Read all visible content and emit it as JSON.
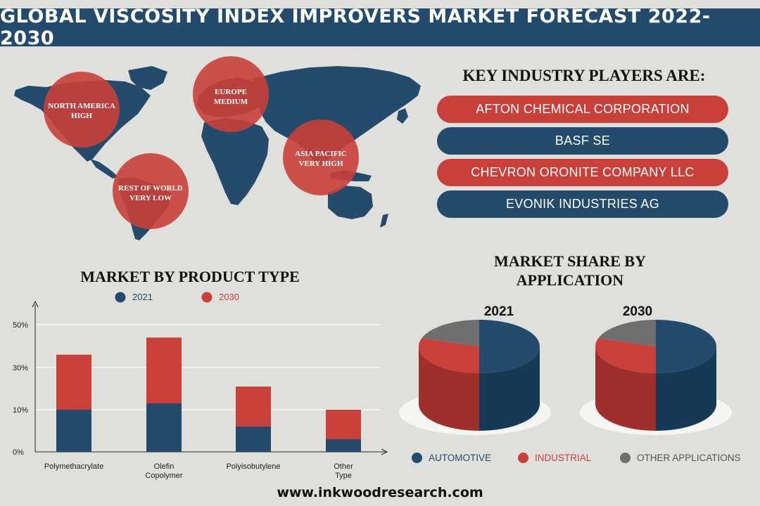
{
  "header": {
    "title": "GLOBAL VISCOSITY INDEX IMPROVERS MARKET FORECAST 2022-2030"
  },
  "regions": [
    {
      "name": "NORTH AMERICA",
      "level": "HIGH"
    },
    {
      "name": "EUROPE",
      "level": "MEDIUM"
    },
    {
      "name": "ASIA PACIFIC",
      "level": "VERY HIGH"
    },
    {
      "name": "REST OF WORLD",
      "level": "VERY LOW"
    }
  ],
  "players": {
    "title": "KEY INDUSTRY PLAYERS ARE:",
    "items": [
      "AFTON CHEMICAL CORPORATION",
      "BASF SE",
      "CHEVRON ORONITE COMPANY LLC",
      "EVONIK INDUSTRIES AG"
    ]
  },
  "product_title": "MARKET BY PRODUCT TYPE",
  "application_title": [
    "MARKET SHARE BY",
    "APPLICATION"
  ],
  "colors": {
    "navy": "#244b6b",
    "red": "#c9403a",
    "gray": "#6e6e6e",
    "bg": "#dfe0dc",
    "land": "#244b6b"
  },
  "chart_data": [
    {
      "type": "bar",
      "stacked": true,
      "title": "MARKET BY PRODUCT TYPE",
      "categories": [
        "Polymethacrylate",
        "Olefin Copolymer",
        "Polyisobutylene",
        "Other Type"
      ],
      "series": [
        {
          "name": "2021",
          "values": [
            10,
            13,
            6,
            3
          ],
          "color": "#244b6b"
        },
        {
          "name": "2030",
          "values": [
            26,
            31,
            15,
            7
          ],
          "color": "#c9403a"
        }
      ],
      "yticks": [
        "0%",
        "10%",
        "30%",
        "50%"
      ],
      "legend": "top",
      "grid": true
    },
    {
      "type": "pie",
      "title": "2021",
      "labels": [
        "AUTOMOTIVE",
        "INDUSTRIAL",
        "OTHER APPLICATIONS"
      ],
      "values": [
        50,
        30,
        20
      ]
    },
    {
      "type": "pie",
      "title": "2030",
      "labels": [
        "AUTOMOTIVE",
        "INDUSTRIAL",
        "OTHER APPLICATIONS"
      ],
      "values": [
        50,
        30,
        20
      ]
    }
  ],
  "legend_bottom": [
    "AUTOMOTIVE",
    "INDUSTRIAL",
    "OTHER APPLICATIONS"
  ],
  "footer": "www.inkwoodresearch.com"
}
